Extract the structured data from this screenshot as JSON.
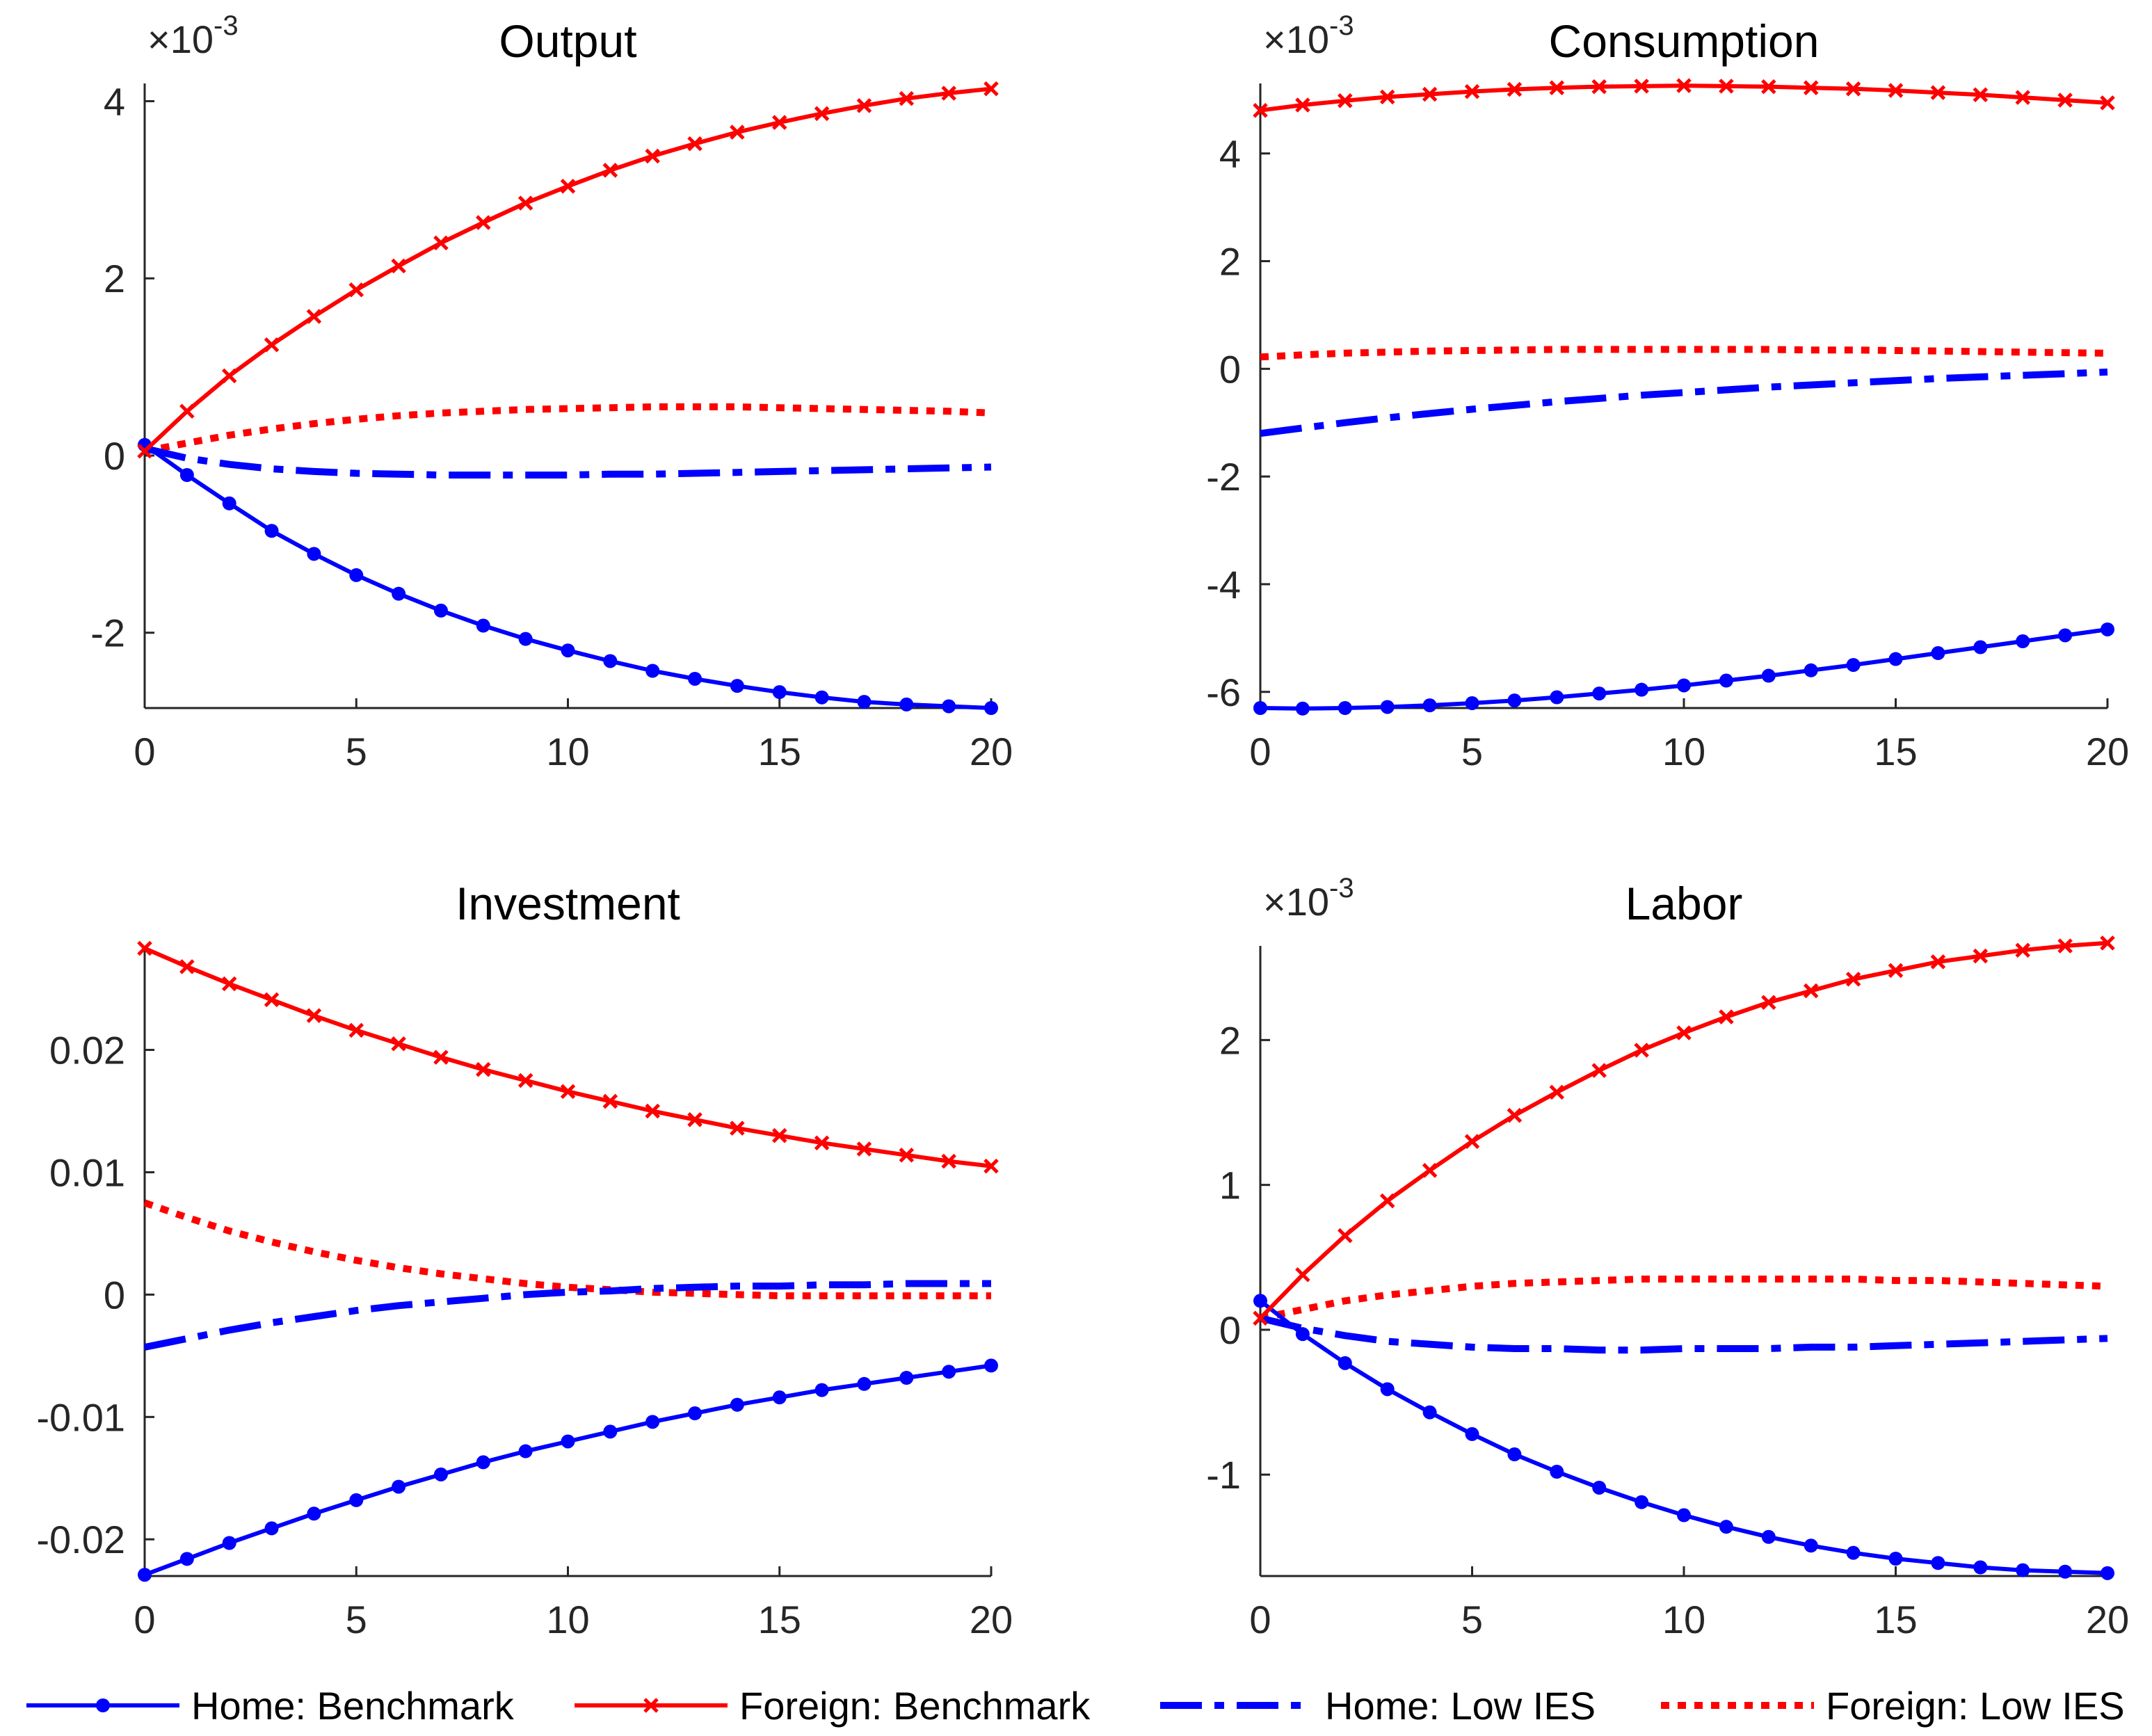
{
  "colors": {
    "home": "#0000ff",
    "foreign": "#ff0000",
    "axis": "#262626"
  },
  "legend": [
    {
      "label": "Home: Benchmark",
      "color": "#0000ff",
      "style": "solid",
      "marker": "dot"
    },
    {
      "label": "Foreign: Benchmark",
      "color": "#ff0000",
      "style": "solid",
      "marker": "x"
    },
    {
      "label": "Home: Low IES",
      "color": "#0000ff",
      "style": "dashdot",
      "marker": "none"
    },
    {
      "label": "Foreign: Low IES",
      "color": "#ff0000",
      "style": "dotted",
      "marker": "none"
    }
  ],
  "chart_data": [
    {
      "type": "line",
      "title": "Output",
      "exponent_label": "×10",
      "exponent_power": "-3",
      "xlim": [
        0,
        20
      ],
      "ylim": [
        -2.85,
        4.2
      ],
      "xticks": [
        0,
        5,
        10,
        15,
        20
      ],
      "yticks": [
        -2,
        0,
        2,
        4
      ],
      "ytick_labels": [
        "-2",
        "0",
        "2",
        "4"
      ],
      "x": [
        0,
        1,
        2,
        3,
        4,
        5,
        6,
        7,
        8,
        9,
        10,
        11,
        12,
        13,
        14,
        15,
        16,
        17,
        18,
        19,
        20
      ],
      "series": [
        {
          "name": "Home: Benchmark",
          "values": [
            0.12,
            -0.22,
            -0.54,
            -0.85,
            -1.11,
            -1.35,
            -1.56,
            -1.75,
            -1.92,
            -2.07,
            -2.2,
            -2.32,
            -2.43,
            -2.52,
            -2.6,
            -2.67,
            -2.73,
            -2.78,
            -2.81,
            -2.83,
            -2.85
          ]
        },
        {
          "name": "Foreign: Benchmark",
          "values": [
            0.05,
            0.5,
            0.9,
            1.25,
            1.57,
            1.87,
            2.14,
            2.4,
            2.63,
            2.85,
            3.04,
            3.22,
            3.38,
            3.52,
            3.65,
            3.76,
            3.86,
            3.95,
            4.03,
            4.09,
            4.14
          ]
        },
        {
          "name": "Home: Low IES",
          "values": [
            0.08,
            -0.03,
            -0.1,
            -0.15,
            -0.18,
            -0.2,
            -0.21,
            -0.22,
            -0.22,
            -0.22,
            -0.22,
            -0.21,
            -0.21,
            -0.2,
            -0.19,
            -0.18,
            -0.17,
            -0.16,
            -0.15,
            -0.14,
            -0.13
          ]
        },
        {
          "name": "Foreign: Low IES",
          "values": [
            0.05,
            0.14,
            0.23,
            0.3,
            0.36,
            0.41,
            0.45,
            0.48,
            0.5,
            0.52,
            0.53,
            0.54,
            0.55,
            0.55,
            0.55,
            0.54,
            0.53,
            0.52,
            0.51,
            0.5,
            0.48
          ]
        }
      ]
    },
    {
      "type": "line",
      "title": "Consumption",
      "exponent_label": "×10",
      "exponent_power": "-3",
      "xlim": [
        0,
        20
      ],
      "ylim": [
        -6.3,
        5.3
      ],
      "xticks": [
        0,
        5,
        10,
        15,
        20
      ],
      "yticks": [
        -6,
        -4,
        -2,
        0,
        2,
        4
      ],
      "ytick_labels": [
        "-6",
        "-4",
        "-2",
        "0",
        "2",
        "4"
      ],
      "x": [
        0,
        1,
        2,
        3,
        4,
        5,
        6,
        7,
        8,
        9,
        10,
        11,
        12,
        13,
        14,
        15,
        16,
        17,
        18,
        19,
        20
      ],
      "series": [
        {
          "name": "Home: Benchmark",
          "values": [
            -6.3,
            -6.31,
            -6.3,
            -6.28,
            -6.25,
            -6.21,
            -6.16,
            -6.1,
            -6.03,
            -5.96,
            -5.88,
            -5.79,
            -5.7,
            -5.6,
            -5.5,
            -5.39,
            -5.28,
            -5.17,
            -5.06,
            -4.95,
            -4.84
          ]
        },
        {
          "name": "Foreign: Benchmark",
          "values": [
            4.8,
            4.9,
            4.98,
            5.05,
            5.1,
            5.15,
            5.19,
            5.22,
            5.24,
            5.25,
            5.26,
            5.25,
            5.24,
            5.22,
            5.2,
            5.17,
            5.13,
            5.09,
            5.04,
            4.99,
            4.94
          ]
        },
        {
          "name": "Home: Low IES",
          "values": [
            -1.2,
            -1.1,
            -1.0,
            -0.91,
            -0.83,
            -0.75,
            -0.68,
            -0.61,
            -0.55,
            -0.49,
            -0.44,
            -0.39,
            -0.34,
            -0.3,
            -0.26,
            -0.22,
            -0.18,
            -0.15,
            -0.12,
            -0.09,
            -0.06
          ]
        },
        {
          "name": "Foreign: Low IES",
          "values": [
            0.22,
            0.26,
            0.29,
            0.31,
            0.33,
            0.34,
            0.35,
            0.36,
            0.36,
            0.36,
            0.36,
            0.36,
            0.36,
            0.35,
            0.35,
            0.34,
            0.33,
            0.32,
            0.31,
            0.3,
            0.29
          ]
        }
      ]
    },
    {
      "type": "line",
      "title": "Investment",
      "exponent_label": "",
      "exponent_power": "",
      "xlim": [
        0,
        20
      ],
      "ylim": [
        -0.023,
        0.0285
      ],
      "xticks": [
        0,
        5,
        10,
        15,
        20
      ],
      "yticks": [
        -0.02,
        -0.01,
        0,
        0.01,
        0.02
      ],
      "ytick_labels": [
        "-0.02",
        "-0.01",
        "0",
        "0.01",
        "0.02"
      ],
      "x": [
        0,
        1,
        2,
        3,
        4,
        5,
        6,
        7,
        8,
        9,
        10,
        11,
        12,
        13,
        14,
        15,
        16,
        17,
        18,
        19,
        20
      ],
      "series": [
        {
          "name": "Home: Benchmark",
          "values": [
            -0.0229,
            -0.0216,
            -0.0203,
            -0.0191,
            -0.0179,
            -0.0168,
            -0.0157,
            -0.0147,
            -0.0137,
            -0.0128,
            -0.012,
            -0.0112,
            -0.0104,
            -0.0097,
            -0.009,
            -0.0084,
            -0.0078,
            -0.0073,
            -0.0068,
            -0.0063,
            -0.0058
          ]
        },
        {
          "name": "Foreign: Benchmark",
          "values": [
            0.0283,
            0.0268,
            0.0254,
            0.0241,
            0.0228,
            0.0216,
            0.0205,
            0.0194,
            0.0184,
            0.0175,
            0.0166,
            0.0158,
            0.015,
            0.0143,
            0.0136,
            0.013,
            0.0124,
            0.0119,
            0.0114,
            0.0109,
            0.0105
          ]
        },
        {
          "name": "Home: Low IES",
          "values": [
            -0.0043,
            -0.0036,
            -0.0029,
            -0.0023,
            -0.0018,
            -0.0013,
            -0.0009,
            -0.0006,
            -0.0003,
            0.0,
            0.0002,
            0.0003,
            0.0005,
            0.0006,
            0.0007,
            0.0007,
            0.0008,
            0.0008,
            0.0009,
            0.0009,
            0.0009
          ]
        },
        {
          "name": "Foreign: Low IES",
          "values": [
            0.0075,
            0.0063,
            0.0052,
            0.0043,
            0.0035,
            0.0028,
            0.0022,
            0.0017,
            0.0013,
            0.0009,
            0.0006,
            0.0004,
            0.0002,
            0.0001,
            0.0,
            -0.0001,
            -0.0001,
            -0.0001,
            -0.0001,
            -0.0001,
            -0.0001
          ]
        }
      ]
    },
    {
      "type": "line",
      "title": "Labor",
      "exponent_label": "×10",
      "exponent_power": "-3",
      "xlim": [
        0,
        20
      ],
      "ylim": [
        -1.7,
        2.65
      ],
      "xticks": [
        0,
        5,
        10,
        15,
        20
      ],
      "yticks": [
        -1,
        0,
        1,
        2
      ],
      "ytick_labels": [
        "-1",
        "0",
        "1",
        "2"
      ],
      "x": [
        0,
        1,
        2,
        3,
        4,
        5,
        6,
        7,
        8,
        9,
        10,
        11,
        12,
        13,
        14,
        15,
        16,
        17,
        18,
        19,
        20
      ],
      "series": [
        {
          "name": "Home: Benchmark",
          "values": [
            0.2,
            -0.03,
            -0.23,
            -0.41,
            -0.57,
            -0.72,
            -0.86,
            -0.98,
            -1.09,
            -1.19,
            -1.28,
            -1.36,
            -1.43,
            -1.49,
            -1.54,
            -1.58,
            -1.61,
            -1.64,
            -1.66,
            -1.67,
            -1.68
          ]
        },
        {
          "name": "Foreign: Benchmark",
          "values": [
            0.08,
            0.38,
            0.65,
            0.89,
            1.1,
            1.3,
            1.48,
            1.64,
            1.79,
            1.93,
            2.05,
            2.16,
            2.26,
            2.34,
            2.42,
            2.48,
            2.54,
            2.58,
            2.62,
            2.65,
            2.67
          ]
        },
        {
          "name": "Home: Low IES",
          "values": [
            0.08,
            0.01,
            -0.04,
            -0.08,
            -0.1,
            -0.12,
            -0.13,
            -0.13,
            -0.14,
            -0.14,
            -0.13,
            -0.13,
            -0.13,
            -0.12,
            -0.12,
            -0.11,
            -0.1,
            -0.09,
            -0.08,
            -0.07,
            -0.06
          ]
        },
        {
          "name": "Foreign: Low IES",
          "values": [
            0.08,
            0.14,
            0.2,
            0.24,
            0.27,
            0.3,
            0.32,
            0.33,
            0.34,
            0.35,
            0.35,
            0.35,
            0.35,
            0.35,
            0.35,
            0.34,
            0.34,
            0.33,
            0.32,
            0.31,
            0.3
          ]
        }
      ]
    }
  ]
}
